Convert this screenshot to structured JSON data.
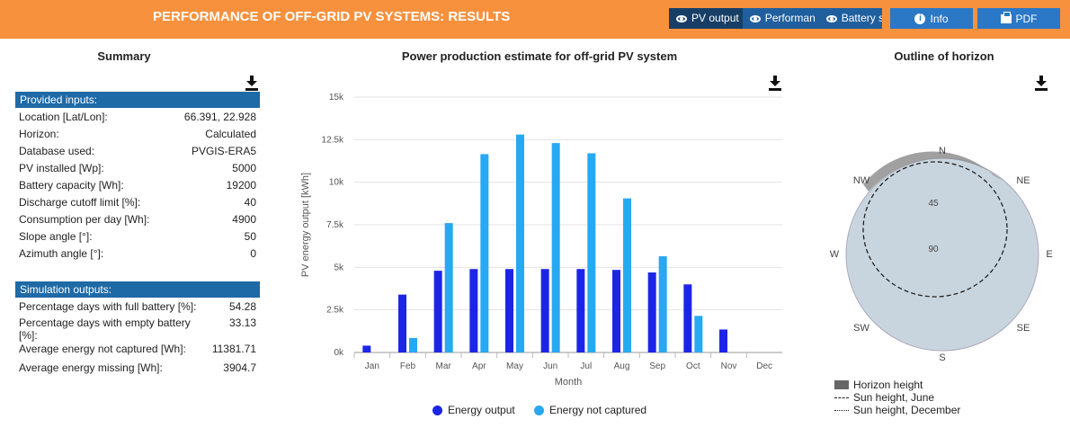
{
  "header": {
    "title": "PERFORMANCE OF OFF-GRID PV SYSTEMS: RESULTS",
    "tabs": [
      {
        "label": "PV output",
        "active": true
      },
      {
        "label": "Performan",
        "active": false
      },
      {
        "label": "Battery stat",
        "active": false
      }
    ],
    "info_label": "Info",
    "pdf_label": "PDF"
  },
  "summary": {
    "title": "Summary",
    "provided_inputs_header": "Provided inputs:",
    "inputs": [
      {
        "label": "Location [Lat/Lon]:",
        "value": "66.391, 22.928"
      },
      {
        "label": "Horizon:",
        "value": "Calculated"
      },
      {
        "label": "Database used:",
        "value": "PVGIS-ERA5"
      },
      {
        "label": "PV installed [Wp]:",
        "value": "5000"
      },
      {
        "label": "Battery capacity [Wh]:",
        "value": "19200"
      },
      {
        "label": "Discharge cutoff limit [%]:",
        "value": "40"
      },
      {
        "label": "Consumption per day [Wh]:",
        "value": "4900"
      },
      {
        "label": "Slope angle [°]:",
        "value": "50"
      },
      {
        "label": "Azimuth angle [°]:",
        "value": "0"
      }
    ],
    "simulation_outputs_header": "Simulation outputs:",
    "outputs": [
      {
        "label": "Percentage days with full battery [%]:",
        "value": "54.28"
      },
      {
        "label": "Percentage days with empty battery [%]:",
        "value": "33.13"
      },
      {
        "label": "Average energy not captured [Wh]:",
        "value": "11381.71"
      },
      {
        "label": "Average energy missing [Wh]:",
        "value": "3904.7"
      }
    ]
  },
  "chart_data": {
    "type": "bar",
    "title": "Power production estimate for off-grid PV system",
    "xlabel": "Month",
    "ylabel": "PV energy output [kWh]",
    "ylim": [
      0,
      15000
    ],
    "yticks": [
      "0k",
      "2.5k",
      "5k",
      "7.5k",
      "10k",
      "12.5k",
      "15k"
    ],
    "categories": [
      "Jan",
      "Feb",
      "Mar",
      "Apr",
      "May",
      "Jun",
      "Jul",
      "Aug",
      "Sep",
      "Oct",
      "Nov",
      "Dec"
    ],
    "series": [
      {
        "name": "Energy output",
        "color": "#1c25e6",
        "values": [
          400,
          3400,
          4800,
          4900,
          4900,
          4900,
          4900,
          4850,
          4700,
          4000,
          1350,
          0
        ]
      },
      {
        "name": "Energy not captured",
        "color": "#27a8f2",
        "values": [
          0,
          850,
          7600,
          11650,
          12800,
          12300,
          11700,
          9050,
          5650,
          2150,
          0,
          0
        ]
      }
    ],
    "grid": true,
    "legend": "bottom"
  },
  "horizon": {
    "title": "Outline of horizon",
    "compass": [
      "N",
      "NE",
      "E",
      "SE",
      "S",
      "SW",
      "W",
      "NW"
    ],
    "rings": [
      "45",
      "90"
    ],
    "legend": [
      "Horizon height",
      "Sun height, June",
      "Sun height, December"
    ]
  },
  "colors": {
    "brand": "#f7913d",
    "section_header": "#1e6aa7",
    "button": "#2a78c6",
    "disc": "#c9d5de"
  },
  "icons": {
    "download": "download-icon",
    "eye": "eye-icon",
    "info": "info-icon",
    "pdf": "printer-icon"
  }
}
